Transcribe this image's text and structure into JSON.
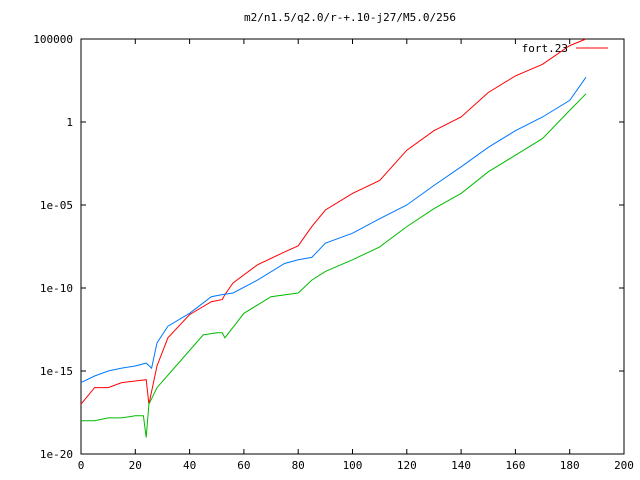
{
  "chart_data": {
    "type": "line",
    "title": "m2/n1.5/q2.0/r-+.10-j27/M5.0/256",
    "xlabel": "",
    "ylabel": "",
    "xlim": [
      0,
      200
    ],
    "ylim": [
      1e-20,
      100000
    ],
    "yscale": "log",
    "x_ticks": [
      "0",
      "20",
      "40",
      "60",
      "80",
      "100",
      "120",
      "140",
      "160",
      "180",
      "200"
    ],
    "y_ticks": [
      "1e-20",
      "1e-15",
      "1e-10",
      "1e-05",
      "1",
      "100000"
    ],
    "legend": {
      "position": "top-right"
    },
    "series": [
      {
        "name": "fort.23",
        "color": "#ff0000",
        "x": [
          0,
          5,
          10,
          15,
          20,
          24,
          25,
          28,
          32,
          40,
          48,
          52,
          53,
          56,
          65,
          75,
          80,
          85,
          90,
          100,
          110,
          120,
          130,
          140,
          150,
          160,
          170,
          180,
          186
        ],
        "y": [
          1e-17,
          1e-16,
          1e-16,
          2e-16,
          2.5e-16,
          3e-16,
          1e-17,
          2e-15,
          1e-13,
          2.5e-12,
          1.5e-11,
          2e-11,
          4e-11,
          2e-10,
          2.5e-09,
          1.5e-08,
          3.5e-08,
          5e-07,
          5e-06,
          5e-05,
          0.0003,
          0.02,
          0.3,
          2.0,
          60,
          600,
          3000,
          40000,
          100000
        ]
      },
      {
        "name": "",
        "color": "#0077ff",
        "x": [
          0,
          5,
          10,
          15,
          20,
          24,
          26,
          28,
          32,
          40,
          48,
          52,
          56,
          65,
          75,
          80,
          85,
          90,
          100,
          110,
          120,
          130,
          140,
          150,
          160,
          170,
          180,
          186
        ],
        "y": [
          2e-16,
          5e-16,
          1e-15,
          1.5e-15,
          2e-15,
          3e-15,
          1.5e-15,
          5e-14,
          5e-13,
          3e-12,
          3e-11,
          4e-11,
          5e-11,
          3e-10,
          3e-09,
          5e-09,
          7e-09,
          5e-08,
          2e-07,
          1.5e-06,
          1e-05,
          0.00015,
          0.002,
          0.03,
          0.3,
          2,
          20,
          500
        ]
      },
      {
        "name": "",
        "color": "#00bb00",
        "x": [
          0,
          5,
          10,
          15,
          20,
          23,
          24,
          25,
          28,
          35,
          45,
          50,
          52,
          53,
          60,
          70,
          80,
          85,
          90,
          100,
          110,
          120,
          130,
          140,
          150,
          160,
          170,
          180,
          186
        ],
        "y": [
          1e-18,
          1e-18,
          1.5e-18,
          1.5e-18,
          2e-18,
          2e-18,
          1e-19,
          1e-17,
          1e-16,
          2e-15,
          1.5e-13,
          2e-13,
          2e-13,
          1e-13,
          3e-12,
          3e-11,
          5e-11,
          3e-10,
          1e-09,
          5e-09,
          3e-08,
          5e-07,
          6e-06,
          5e-05,
          0.001,
          0.01,
          0.1,
          5,
          50
        ]
      }
    ]
  }
}
